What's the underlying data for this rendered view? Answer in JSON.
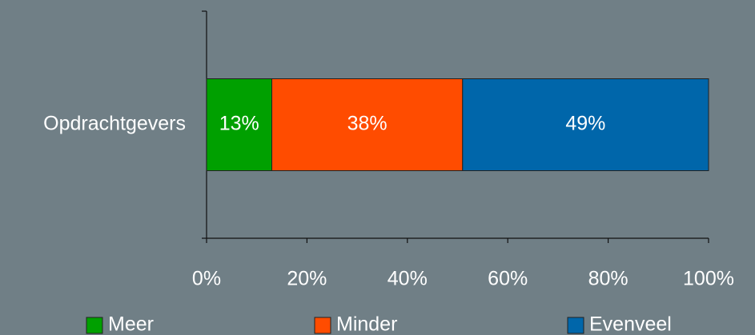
{
  "chart_data": {
    "type": "stacked_barh",
    "categories": [
      "Opdrachtgevers"
    ],
    "series": [
      {
        "name": "Meer",
        "color": "#00a000",
        "values": [
          13
        ],
        "value_labels": [
          "13%"
        ]
      },
      {
        "name": "Minder",
        "color": "#ff4c00",
        "values": [
          38
        ],
        "value_labels": [
          "38%"
        ]
      },
      {
        "name": "Evenveel",
        "color": "#0066aa",
        "values": [
          49
        ],
        "value_labels": [
          "49%"
        ]
      }
    ],
    "xlim": [
      0,
      100
    ],
    "xticks": [
      {
        "value": 0,
        "label": "0%"
      },
      {
        "value": 20,
        "label": "20%"
      },
      {
        "value": 40,
        "label": "40%"
      },
      {
        "value": 60,
        "label": "60%"
      },
      {
        "value": 80,
        "label": "80%"
      },
      {
        "value": 100,
        "label": "100%"
      }
    ],
    "legend": "bottom"
  }
}
